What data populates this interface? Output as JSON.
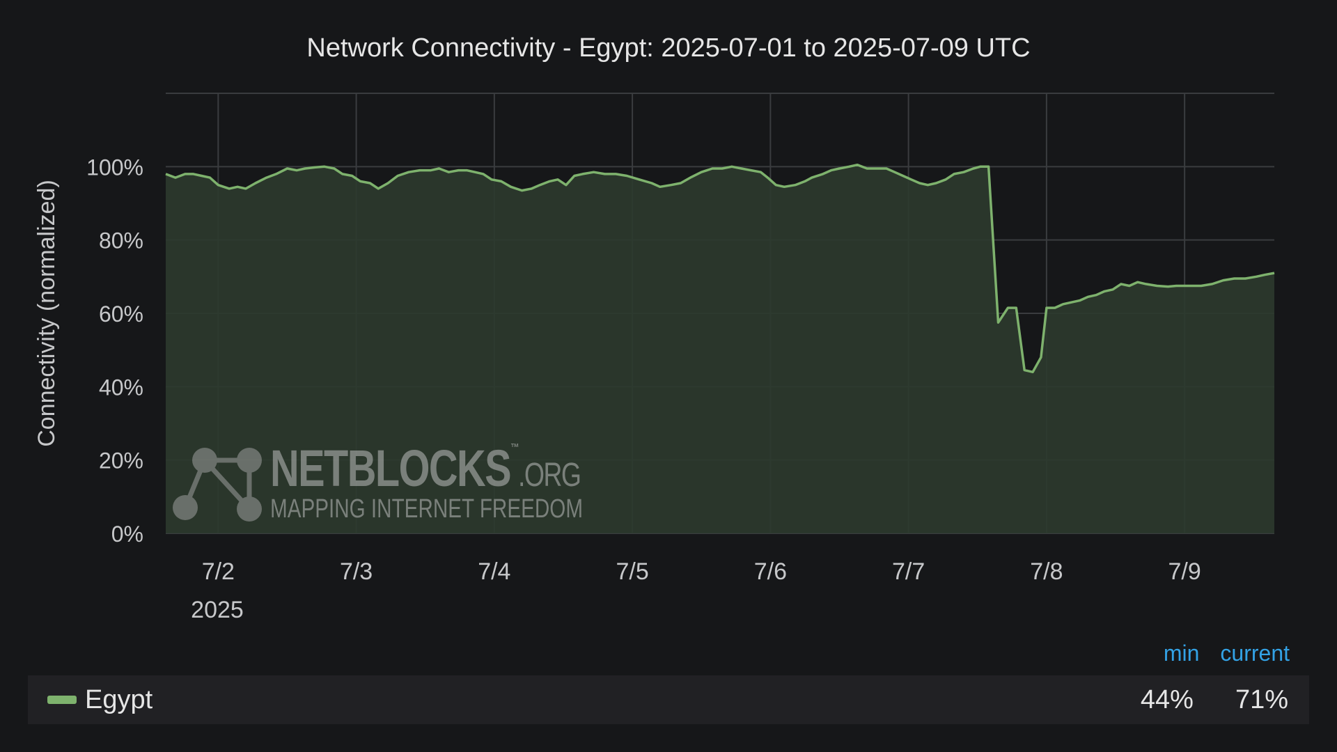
{
  "chart_data": {
    "type": "area",
    "title": "Network Connectivity - Egypt: 2025-07-01 to 2025-07-09 UTC",
    "ylabel": "Connectivity (normalized)",
    "xlabel": "",
    "year_label": "2025",
    "x_ticks": [
      "7/2",
      "7/3",
      "7/4",
      "7/5",
      "7/6",
      "7/7",
      "7/8",
      "7/9"
    ],
    "y_ticks": [
      "0%",
      "20%",
      "40%",
      "60%",
      "80%",
      "100%"
    ],
    "ylim": [
      0,
      120
    ],
    "xlim_days": [
      1.62,
      9.65
    ],
    "grid": true,
    "legend_placement": "bottom",
    "series": [
      {
        "name": "Egypt",
        "color": "#7eb26d",
        "points": [
          [
            1.62,
            98
          ],
          [
            1.69,
            97
          ],
          [
            1.76,
            98
          ],
          [
            1.82,
            98
          ],
          [
            1.88,
            97.5
          ],
          [
            1.94,
            97
          ],
          [
            2.0,
            95
          ],
          [
            2.08,
            94
          ],
          [
            2.14,
            94.5
          ],
          [
            2.2,
            94
          ],
          [
            2.27,
            95.5
          ],
          [
            2.35,
            97
          ],
          [
            2.42,
            98
          ],
          [
            2.5,
            99.5
          ],
          [
            2.57,
            99
          ],
          [
            2.63,
            99.5
          ],
          [
            2.7,
            99.8
          ],
          [
            2.77,
            100
          ],
          [
            2.84,
            99.5
          ],
          [
            2.9,
            98
          ],
          [
            2.97,
            97.5
          ],
          [
            3.03,
            96
          ],
          [
            3.1,
            95.5
          ],
          [
            3.16,
            94
          ],
          [
            3.23,
            95.5
          ],
          [
            3.3,
            97.5
          ],
          [
            3.38,
            98.5
          ],
          [
            3.46,
            99
          ],
          [
            3.54,
            99
          ],
          [
            3.6,
            99.5
          ],
          [
            3.67,
            98.5
          ],
          [
            3.74,
            99
          ],
          [
            3.8,
            99
          ],
          [
            3.86,
            98.5
          ],
          [
            3.92,
            98
          ],
          [
            3.98,
            96.5
          ],
          [
            4.05,
            96
          ],
          [
            4.12,
            94.5
          ],
          [
            4.2,
            93.5
          ],
          [
            4.27,
            94
          ],
          [
            4.33,
            95
          ],
          [
            4.4,
            96
          ],
          [
            4.46,
            96.5
          ],
          [
            4.52,
            95
          ],
          [
            4.58,
            97.5
          ],
          [
            4.64,
            98
          ],
          [
            4.72,
            98.5
          ],
          [
            4.8,
            98
          ],
          [
            4.88,
            98
          ],
          [
            4.96,
            97.5
          ],
          [
            5.05,
            96.5
          ],
          [
            5.14,
            95.5
          ],
          [
            5.2,
            94.5
          ],
          [
            5.28,
            95
          ],
          [
            5.35,
            95.5
          ],
          [
            5.42,
            97
          ],
          [
            5.5,
            98.5
          ],
          [
            5.58,
            99.5
          ],
          [
            5.65,
            99.5
          ],
          [
            5.72,
            100
          ],
          [
            5.79,
            99.5
          ],
          [
            5.86,
            99
          ],
          [
            5.93,
            98.5
          ],
          [
            5.98,
            97
          ],
          [
            6.04,
            95
          ],
          [
            6.1,
            94.5
          ],
          [
            6.18,
            95
          ],
          [
            6.25,
            96
          ],
          [
            6.3,
            97
          ],
          [
            6.38,
            98
          ],
          [
            6.44,
            99
          ],
          [
            6.5,
            99.5
          ],
          [
            6.57,
            100
          ],
          [
            6.63,
            100.5
          ],
          [
            6.7,
            99.5
          ],
          [
            6.76,
            99.5
          ],
          [
            6.84,
            99.5
          ],
          [
            6.9,
            98.5
          ],
          [
            6.96,
            97.5
          ],
          [
            7.02,
            96.5
          ],
          [
            7.08,
            95.5
          ],
          [
            7.14,
            95
          ],
          [
            7.2,
            95.5
          ],
          [
            7.27,
            96.5
          ],
          [
            7.33,
            98
          ],
          [
            7.4,
            98.5
          ],
          [
            7.47,
            99.5
          ],
          [
            7.52,
            100
          ],
          [
            7.58,
            100
          ],
          [
            7.65,
            57.5
          ],
          [
            7.72,
            61.5
          ],
          [
            7.78,
            61.5
          ],
          [
            7.84,
            44.5
          ],
          [
            7.9,
            44
          ],
          [
            7.96,
            48
          ],
          [
            8.0,
            61.5
          ],
          [
            8.06,
            61.5
          ],
          [
            8.12,
            62.5
          ],
          [
            8.18,
            63
          ],
          [
            8.24,
            63.5
          ],
          [
            8.3,
            64.5
          ],
          [
            8.36,
            65
          ],
          [
            8.42,
            66
          ],
          [
            8.48,
            66.5
          ],
          [
            8.54,
            68
          ],
          [
            8.6,
            67.5
          ],
          [
            8.66,
            68.5
          ],
          [
            8.72,
            68
          ],
          [
            8.8,
            67.5
          ],
          [
            8.88,
            67.3
          ],
          [
            8.94,
            67.5
          ],
          [
            9.0,
            67.5
          ],
          [
            9.06,
            67.5
          ],
          [
            9.12,
            67.5
          ],
          [
            9.2,
            68
          ],
          [
            9.28,
            69
          ],
          [
            9.36,
            69.5
          ],
          [
            9.44,
            69.5
          ],
          [
            9.52,
            70
          ],
          [
            9.58,
            70.5
          ],
          [
            9.65,
            71
          ]
        ]
      }
    ],
    "legend": {
      "headers": [
        "min",
        "current"
      ],
      "rows": [
        {
          "name": "Egypt",
          "min": "44%",
          "current": "71%"
        }
      ]
    }
  },
  "watermark": {
    "name": "NETBLOCKS",
    "suffix": ".ORG",
    "tm": "™",
    "tagline": "MAPPING INTERNET FREEDOM"
  },
  "colors": {
    "background": "#161719",
    "line": "#7eb26d",
    "fill": "#2c3a2e",
    "grid": "#3a3c3f",
    "legend_header": "#33a2e5"
  }
}
